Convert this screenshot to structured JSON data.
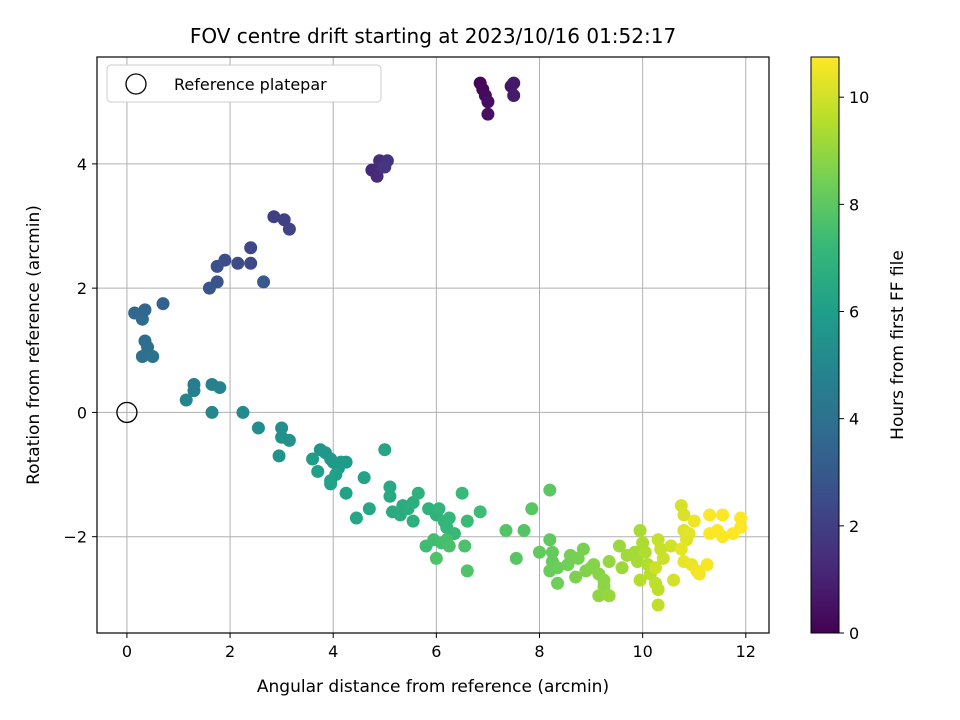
{
  "chart_data": {
    "type": "scatter",
    "title": "FOV centre drift starting at 2023/10/16 01:52:17",
    "xlabel": "Angular distance from reference (arcmin)",
    "ylabel": "Rotation from reference (arcmin)",
    "xlim": [
      -0.58,
      12.45
    ],
    "ylim": [
      -3.55,
      5.72
    ],
    "xticks": [
      0,
      2,
      4,
      6,
      8,
      10,
      12
    ],
    "yticks": [
      -2,
      0,
      2,
      4
    ],
    "xtick_labels": [
      "0",
      "2",
      "4",
      "6",
      "8",
      "10",
      "12"
    ],
    "ytick_labels": [
      "−2",
      "0",
      "2",
      "4"
    ],
    "grid": true,
    "legend": {
      "position": "top-left",
      "entries": [
        "Reference platepar"
      ]
    },
    "reference": {
      "x": 0,
      "y": 0,
      "label": "Reference platepar"
    },
    "colorbar": {
      "label": "Hours from first FF file",
      "colormap": "viridis",
      "range": [
        0,
        10.75
      ],
      "ticks": [
        0,
        2,
        4,
        6,
        8,
        10
      ],
      "tick_labels": [
        "0",
        "2",
        "4",
        "6",
        "8",
        "10"
      ]
    },
    "colormap_stops": [
      "#440154",
      "#482878",
      "#3e4989",
      "#31688e",
      "#26828e",
      "#1f9e89",
      "#35b779",
      "#6ece58",
      "#b5de2b",
      "#fde725"
    ],
    "points": [
      {
        "x": 6.85,
        "y": 5.3,
        "c": 0.1
      },
      {
        "x": 6.9,
        "y": 5.2,
        "c": 0.2
      },
      {
        "x": 6.95,
        "y": 5.1,
        "c": 0.3
      },
      {
        "x": 7.0,
        "y": 5.0,
        "c": 0.4
      },
      {
        "x": 7.0,
        "y": 4.8,
        "c": 0.5
      },
      {
        "x": 7.45,
        "y": 5.25,
        "c": 0.6
      },
      {
        "x": 7.5,
        "y": 5.3,
        "c": 0.7
      },
      {
        "x": 7.5,
        "y": 5.1,
        "c": 0.8
      },
      {
        "x": 4.75,
        "y": 3.9,
        "c": 1.2
      },
      {
        "x": 4.85,
        "y": 3.8,
        "c": 1.3
      },
      {
        "x": 4.9,
        "y": 4.05,
        "c": 1.4
      },
      {
        "x": 4.95,
        "y": 3.95,
        "c": 1.5
      },
      {
        "x": 5.05,
        "y": 4.05,
        "c": 1.6
      },
      {
        "x": 5.0,
        "y": 3.95,
        "c": 1.7
      },
      {
        "x": 2.85,
        "y": 3.15,
        "c": 2.0
      },
      {
        "x": 3.05,
        "y": 3.1,
        "c": 2.1
      },
      {
        "x": 3.15,
        "y": 2.95,
        "c": 2.2
      },
      {
        "x": 2.4,
        "y": 2.65,
        "c": 2.3
      },
      {
        "x": 2.4,
        "y": 2.4,
        "c": 2.4
      },
      {
        "x": 2.15,
        "y": 2.4,
        "c": 2.5
      },
      {
        "x": 1.9,
        "y": 2.45,
        "c": 2.6
      },
      {
        "x": 1.75,
        "y": 2.35,
        "c": 2.7
      },
      {
        "x": 1.75,
        "y": 2.1,
        "c": 2.8
      },
      {
        "x": 1.6,
        "y": 2.0,
        "c": 2.9
      },
      {
        "x": 2.65,
        "y": 2.1,
        "c": 3.0
      },
      {
        "x": 0.7,
        "y": 1.75,
        "c": 3.4
      },
      {
        "x": 0.35,
        "y": 1.65,
        "c": 3.5
      },
      {
        "x": 0.15,
        "y": 1.6,
        "c": 3.6
      },
      {
        "x": 0.3,
        "y": 1.5,
        "c": 3.7
      },
      {
        "x": 0.35,
        "y": 1.15,
        "c": 3.8
      },
      {
        "x": 0.4,
        "y": 1.05,
        "c": 3.9
      },
      {
        "x": 0.3,
        "y": 0.9,
        "c": 4.0
      },
      {
        "x": 0.5,
        "y": 0.9,
        "c": 4.1
      },
      {
        "x": 1.3,
        "y": 0.45,
        "c": 4.5
      },
      {
        "x": 1.3,
        "y": 0.35,
        "c": 4.6
      },
      {
        "x": 1.65,
        "y": 0.45,
        "c": 4.7
      },
      {
        "x": 1.8,
        "y": 0.4,
        "c": 4.8
      },
      {
        "x": 1.15,
        "y": 0.2,
        "c": 4.9
      },
      {
        "x": 1.65,
        "y": 0.0,
        "c": 5.0
      },
      {
        "x": 2.25,
        "y": 0.0,
        "c": 5.1
      },
      {
        "x": 2.55,
        "y": -0.25,
        "c": 5.2
      },
      {
        "x": 3.0,
        "y": -0.25,
        "c": 5.3
      },
      {
        "x": 3.0,
        "y": -0.4,
        "c": 5.4
      },
      {
        "x": 3.15,
        "y": -0.45,
        "c": 5.45
      },
      {
        "x": 2.95,
        "y": -0.7,
        "c": 5.5
      },
      {
        "x": 3.75,
        "y": -0.6,
        "c": 5.6
      },
      {
        "x": 3.85,
        "y": -0.65,
        "c": 5.65
      },
      {
        "x": 3.95,
        "y": -0.75,
        "c": 5.7
      },
      {
        "x": 4.0,
        "y": -0.8,
        "c": 5.75
      },
      {
        "x": 4.15,
        "y": -0.8,
        "c": 5.8
      },
      {
        "x": 4.25,
        "y": -0.8,
        "c": 5.85
      },
      {
        "x": 4.1,
        "y": -0.9,
        "c": 5.9
      },
      {
        "x": 3.6,
        "y": -0.75,
        "c": 5.95
      },
      {
        "x": 3.7,
        "y": -0.95,
        "c": 6.0
      },
      {
        "x": 4.05,
        "y": -1.0,
        "c": 6.05
      },
      {
        "x": 3.95,
        "y": -1.1,
        "c": 6.1
      },
      {
        "x": 3.95,
        "y": -1.15,
        "c": 6.15
      },
      {
        "x": 4.25,
        "y": -1.3,
        "c": 6.2
      },
      {
        "x": 4.6,
        "y": -1.05,
        "c": 6.25
      },
      {
        "x": 5.0,
        "y": -0.6,
        "c": 6.3
      },
      {
        "x": 4.45,
        "y": -1.7,
        "c": 6.35
      },
      {
        "x": 4.7,
        "y": -1.55,
        "c": 6.4
      },
      {
        "x": 5.1,
        "y": -1.2,
        "c": 6.45
      },
      {
        "x": 5.1,
        "y": -1.35,
        "c": 6.5
      },
      {
        "x": 5.15,
        "y": -1.6,
        "c": 6.55
      },
      {
        "x": 5.35,
        "y": -1.5,
        "c": 6.6
      },
      {
        "x": 5.3,
        "y": -1.65,
        "c": 6.65
      },
      {
        "x": 5.45,
        "y": -1.55,
        "c": 6.7
      },
      {
        "x": 5.55,
        "y": -1.45,
        "c": 6.75
      },
      {
        "x": 5.55,
        "y": -1.75,
        "c": 6.8
      },
      {
        "x": 5.65,
        "y": -1.3,
        "c": 6.85
      },
      {
        "x": 5.85,
        "y": -1.55,
        "c": 6.9
      },
      {
        "x": 6.0,
        "y": -1.65,
        "c": 6.95
      },
      {
        "x": 6.05,
        "y": -1.55,
        "c": 7.0
      },
      {
        "x": 6.15,
        "y": -1.75,
        "c": 7.05
      },
      {
        "x": 6.2,
        "y": -1.85,
        "c": 7.1
      },
      {
        "x": 6.25,
        "y": -1.7,
        "c": 7.15
      },
      {
        "x": 6.35,
        "y": -1.95,
        "c": 7.2
      },
      {
        "x": 6.5,
        "y": -1.3,
        "c": 7.25
      },
      {
        "x": 6.6,
        "y": -1.75,
        "c": 7.3
      },
      {
        "x": 6.85,
        "y": -1.6,
        "c": 7.35
      },
      {
        "x": 5.8,
        "y": -2.15,
        "c": 7.4
      },
      {
        "x": 5.95,
        "y": -2.05,
        "c": 7.45
      },
      {
        "x": 6.1,
        "y": -2.1,
        "c": 7.5
      },
      {
        "x": 6.2,
        "y": -2.05,
        "c": 7.55
      },
      {
        "x": 6.25,
        "y": -2.15,
        "c": 7.6
      },
      {
        "x": 6.55,
        "y": -2.15,
        "c": 7.65
      },
      {
        "x": 6.0,
        "y": -2.35,
        "c": 7.7
      },
      {
        "x": 6.6,
        "y": -2.55,
        "c": 7.75
      },
      {
        "x": 7.35,
        "y": -1.9,
        "c": 7.8
      },
      {
        "x": 7.7,
        "y": -1.9,
        "c": 7.85
      },
      {
        "x": 7.55,
        "y": -2.35,
        "c": 7.9
      },
      {
        "x": 7.85,
        "y": -1.55,
        "c": 7.95
      },
      {
        "x": 8.2,
        "y": -1.25,
        "c": 8.0
      },
      {
        "x": 8.2,
        "y": -2.05,
        "c": 8.05
      },
      {
        "x": 8.0,
        "y": -2.25,
        "c": 8.1
      },
      {
        "x": 8.25,
        "y": -2.25,
        "c": 8.15
      },
      {
        "x": 8.25,
        "y": -2.4,
        "c": 8.2
      },
      {
        "x": 8.2,
        "y": -2.55,
        "c": 8.25
      },
      {
        "x": 8.35,
        "y": -2.5,
        "c": 8.3
      },
      {
        "x": 8.35,
        "y": -2.75,
        "c": 8.35
      },
      {
        "x": 8.55,
        "y": -2.45,
        "c": 8.4
      },
      {
        "x": 8.6,
        "y": -2.3,
        "c": 8.45
      },
      {
        "x": 8.75,
        "y": -2.35,
        "c": 8.5
      },
      {
        "x": 8.85,
        "y": -2.2,
        "c": 8.55
      },
      {
        "x": 8.7,
        "y": -2.65,
        "c": 8.6
      },
      {
        "x": 8.9,
        "y": -2.55,
        "c": 8.65
      },
      {
        "x": 9.0,
        "y": -2.5,
        "c": 8.7
      },
      {
        "x": 9.05,
        "y": -2.45,
        "c": 8.75
      },
      {
        "x": 9.15,
        "y": -2.6,
        "c": 8.8
      },
      {
        "x": 9.25,
        "y": -2.7,
        "c": 8.85
      },
      {
        "x": 9.25,
        "y": -2.8,
        "c": 8.9
      },
      {
        "x": 9.15,
        "y": -2.95,
        "c": 8.95
      },
      {
        "x": 9.35,
        "y": -2.4,
        "c": 9.0
      },
      {
        "x": 9.35,
        "y": -2.95,
        "c": 9.05
      },
      {
        "x": 9.55,
        "y": -2.15,
        "c": 9.1
      },
      {
        "x": 9.6,
        "y": -2.5,
        "c": 9.15
      },
      {
        "x": 9.7,
        "y": -2.3,
        "c": 9.2
      },
      {
        "x": 9.85,
        "y": -2.25,
        "c": 9.25
      },
      {
        "x": 9.9,
        "y": -2.4,
        "c": 9.3
      },
      {
        "x": 9.95,
        "y": -1.9,
        "c": 9.35
      },
      {
        "x": 10.0,
        "y": -2.1,
        "c": 9.4
      },
      {
        "x": 10.05,
        "y": -2.25,
        "c": 9.45
      },
      {
        "x": 10.1,
        "y": -2.45,
        "c": 9.5
      },
      {
        "x": 9.95,
        "y": -2.7,
        "c": 9.55
      },
      {
        "x": 10.15,
        "y": -2.6,
        "c": 9.6
      },
      {
        "x": 10.25,
        "y": -2.75,
        "c": 9.65
      },
      {
        "x": 10.3,
        "y": -2.85,
        "c": 9.7
      },
      {
        "x": 10.3,
        "y": -3.1,
        "c": 9.75
      },
      {
        "x": 10.3,
        "y": -2.05,
        "c": 9.8
      },
      {
        "x": 10.35,
        "y": -2.2,
        "c": 9.85
      },
      {
        "x": 10.4,
        "y": -2.35,
        "c": 9.9
      },
      {
        "x": 10.25,
        "y": -2.5,
        "c": 9.95
      },
      {
        "x": 10.55,
        "y": -2.15,
        "c": 10.0
      },
      {
        "x": 10.6,
        "y": -2.7,
        "c": 10.05
      },
      {
        "x": 10.75,
        "y": -1.5,
        "c": 10.1
      },
      {
        "x": 10.8,
        "y": -1.65,
        "c": 10.15
      },
      {
        "x": 10.8,
        "y": -1.9,
        "c": 10.2
      },
      {
        "x": 10.85,
        "y": -2.05,
        "c": 10.25
      },
      {
        "x": 10.9,
        "y": -1.95,
        "c": 10.3
      },
      {
        "x": 10.75,
        "y": -2.2,
        "c": 10.35
      },
      {
        "x": 10.8,
        "y": -2.4,
        "c": 10.4
      },
      {
        "x": 10.95,
        "y": -2.45,
        "c": 10.45
      },
      {
        "x": 11.0,
        "y": -1.75,
        "c": 10.5
      },
      {
        "x": 11.05,
        "y": -2.55,
        "c": 10.55
      },
      {
        "x": 11.1,
        "y": -2.6,
        "c": 10.6
      },
      {
        "x": 11.25,
        "y": -2.45,
        "c": 10.65
      },
      {
        "x": 11.3,
        "y": -1.65,
        "c": 10.7
      },
      {
        "x": 11.3,
        "y": -1.95,
        "c": 10.7
      },
      {
        "x": 11.45,
        "y": -1.9,
        "c": 10.72
      },
      {
        "x": 11.55,
        "y": -1.65,
        "c": 10.72
      },
      {
        "x": 11.55,
        "y": -2.0,
        "c": 10.74
      },
      {
        "x": 11.75,
        "y": -1.95,
        "c": 10.74
      },
      {
        "x": 11.9,
        "y": -1.7,
        "c": 10.75
      },
      {
        "x": 11.9,
        "y": -1.85,
        "c": 10.75
      }
    ]
  }
}
